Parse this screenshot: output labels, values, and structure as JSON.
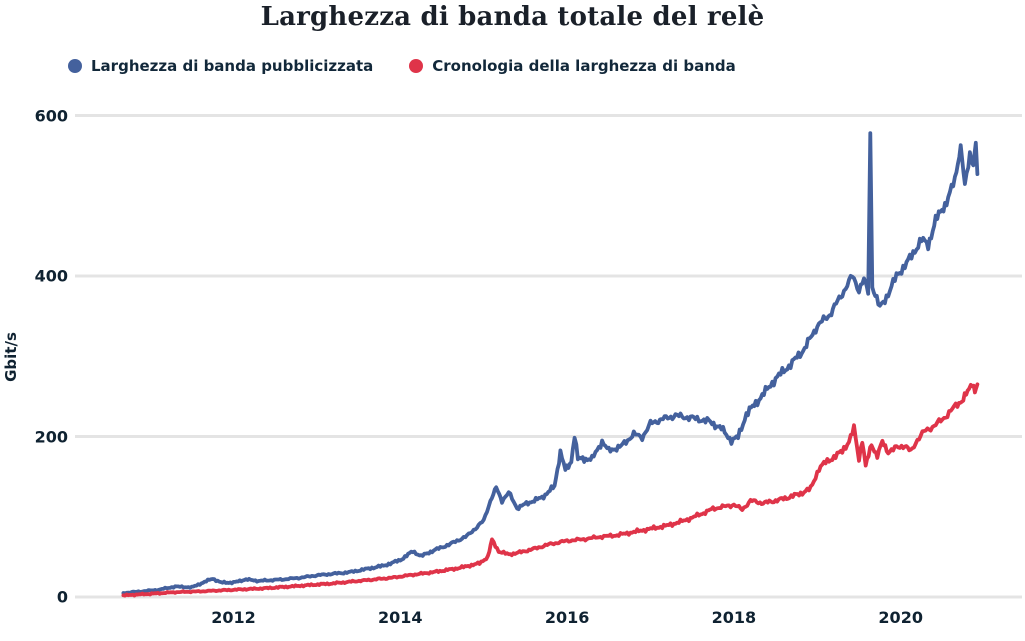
{
  "title": "Larghezza di banda totale del relè",
  "legend": {
    "items": [
      {
        "name": "advertised-bandwidth",
        "label": "Larghezza di banda pubblicizzata",
        "color": "#44619d"
      },
      {
        "name": "bandwidth-history",
        "label": "Cronologia della larghezza di banda",
        "color": "#df3449"
      }
    ]
  },
  "axes": {
    "ylabel": "Gbit/s",
    "yticks": [
      0,
      200,
      400,
      600
    ],
    "xticks": [
      2012,
      2014,
      2016,
      2018,
      2020
    ],
    "ylim": [
      0,
      600
    ],
    "xlim": [
      2010.6,
      2021.0
    ],
    "grid": "horizontal",
    "gridline_color": "#e4e4e4"
  },
  "chart_data": {
    "type": "line",
    "title": "Larghezza di banda totale del relè",
    "xlabel": "",
    "ylabel": "Gbit/s",
    "ylim": [
      0,
      600
    ],
    "xlim": [
      2010.6,
      2021.0
    ],
    "legend_position": "top-left",
    "series": [
      {
        "name": "Larghezza di banda pubblicizzata",
        "color": "#44619d",
        "points": [
          [
            2010.68,
            5
          ],
          [
            2010.9,
            7
          ],
          [
            2011.1,
            9
          ],
          [
            2011.3,
            13
          ],
          [
            2011.5,
            12
          ],
          [
            2011.75,
            23
          ],
          [
            2011.85,
            18
          ],
          [
            2012.0,
            18
          ],
          [
            2012.15,
            22
          ],
          [
            2012.3,
            20
          ],
          [
            2012.6,
            22
          ],
          [
            2012.8,
            24
          ],
          [
            2013.0,
            27
          ],
          [
            2013.2,
            29
          ],
          [
            2013.4,
            31
          ],
          [
            2013.6,
            35
          ],
          [
            2013.8,
            39
          ],
          [
            2014.0,
            46
          ],
          [
            2014.15,
            57
          ],
          [
            2014.25,
            51
          ],
          [
            2014.4,
            58
          ],
          [
            2014.6,
            66
          ],
          [
            2014.8,
            76
          ],
          [
            2015.0,
            95
          ],
          [
            2015.08,
            120
          ],
          [
            2015.15,
            136
          ],
          [
            2015.22,
            120
          ],
          [
            2015.3,
            130
          ],
          [
            2015.4,
            111
          ],
          [
            2015.55,
            118
          ],
          [
            2015.7,
            124
          ],
          [
            2015.85,
            138
          ],
          [
            2015.92,
            181
          ],
          [
            2015.98,
            158
          ],
          [
            2016.05,
            168
          ],
          [
            2016.09,
            202
          ],
          [
            2016.13,
            172
          ],
          [
            2016.3,
            172
          ],
          [
            2016.42,
            194
          ],
          [
            2016.5,
            182
          ],
          [
            2016.65,
            188
          ],
          [
            2016.8,
            203
          ],
          [
            2016.9,
            199
          ],
          [
            2017.0,
            216
          ],
          [
            2017.15,
            222
          ],
          [
            2017.3,
            226
          ],
          [
            2017.5,
            223
          ],
          [
            2017.7,
            219
          ],
          [
            2017.85,
            210
          ],
          [
            2017.97,
            195
          ],
          [
            2018.05,
            199
          ],
          [
            2018.15,
            228
          ],
          [
            2018.3,
            246
          ],
          [
            2018.5,
            272
          ],
          [
            2018.7,
            292
          ],
          [
            2018.85,
            310
          ],
          [
            2019.0,
            338
          ],
          [
            2019.15,
            352
          ],
          [
            2019.3,
            378
          ],
          [
            2019.42,
            400
          ],
          [
            2019.5,
            383
          ],
          [
            2019.56,
            396
          ],
          [
            2019.61,
            378
          ],
          [
            2019.635,
            578
          ],
          [
            2019.66,
            388
          ],
          [
            2019.75,
            360
          ],
          [
            2019.85,
            378
          ],
          [
            2019.95,
            400
          ],
          [
            2020.05,
            413
          ],
          [
            2020.15,
            428
          ],
          [
            2020.25,
            446
          ],
          [
            2020.33,
            438
          ],
          [
            2020.42,
            470
          ],
          [
            2020.55,
            492
          ],
          [
            2020.65,
            520
          ],
          [
            2020.72,
            563
          ],
          [
            2020.77,
            512
          ],
          [
            2020.83,
            552
          ],
          [
            2020.87,
            538
          ],
          [
            2020.9,
            566
          ],
          [
            2020.92,
            527
          ]
        ]
      },
      {
        "name": "Cronologia della larghezza di banda",
        "color": "#df3449",
        "points": [
          [
            2010.68,
            2
          ],
          [
            2011.0,
            4
          ],
          [
            2011.3,
            6
          ],
          [
            2011.6,
            7
          ],
          [
            2012.0,
            9
          ],
          [
            2012.4,
            11
          ],
          [
            2012.8,
            14
          ],
          [
            2013.2,
            17
          ],
          [
            2013.6,
            21
          ],
          [
            2013.9,
            24
          ],
          [
            2014.1,
            27
          ],
          [
            2014.4,
            31
          ],
          [
            2014.7,
            36
          ],
          [
            2014.95,
            42
          ],
          [
            2015.05,
            50
          ],
          [
            2015.1,
            71
          ],
          [
            2015.18,
            57
          ],
          [
            2015.3,
            53
          ],
          [
            2015.45,
            56
          ],
          [
            2015.6,
            60
          ],
          [
            2015.8,
            66
          ],
          [
            2016.0,
            70
          ],
          [
            2016.2,
            72
          ],
          [
            2016.4,
            75
          ],
          [
            2016.6,
            77
          ],
          [
            2016.8,
            81
          ],
          [
            2017.0,
            85
          ],
          [
            2017.2,
            89
          ],
          [
            2017.4,
            95
          ],
          [
            2017.6,
            103
          ],
          [
            2017.75,
            110
          ],
          [
            2017.9,
            113
          ],
          [
            2018.0,
            115
          ],
          [
            2018.1,
            109
          ],
          [
            2018.2,
            120
          ],
          [
            2018.35,
            117
          ],
          [
            2018.5,
            120
          ],
          [
            2018.65,
            124
          ],
          [
            2018.8,
            129
          ],
          [
            2018.92,
            135
          ],
          [
            2019.02,
            160
          ],
          [
            2019.1,
            168
          ],
          [
            2019.2,
            174
          ],
          [
            2019.3,
            182
          ],
          [
            2019.38,
            194
          ],
          [
            2019.44,
            210
          ],
          [
            2019.5,
            172
          ],
          [
            2019.54,
            196
          ],
          [
            2019.58,
            163
          ],
          [
            2019.65,
            190
          ],
          [
            2019.72,
            176
          ],
          [
            2019.78,
            193
          ],
          [
            2019.85,
            181
          ],
          [
            2019.95,
            186
          ],
          [
            2020.05,
            189
          ],
          [
            2020.12,
            181
          ],
          [
            2020.2,
            196
          ],
          [
            2020.28,
            206
          ],
          [
            2020.38,
            212
          ],
          [
            2020.5,
            221
          ],
          [
            2020.6,
            232
          ],
          [
            2020.68,
            240
          ],
          [
            2020.75,
            247
          ],
          [
            2020.82,
            258
          ],
          [
            2020.86,
            268
          ],
          [
            2020.89,
            257
          ],
          [
            2020.92,
            265
          ]
        ]
      }
    ]
  }
}
